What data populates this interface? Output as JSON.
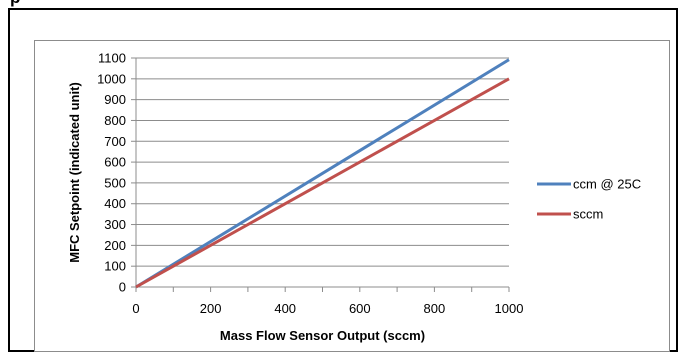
{
  "header": {
    "title_fragment": "p"
  },
  "chart_data": {
    "type": "line",
    "xlabel": "Mass Flow Sensor Output (sccm)",
    "ylabel": "MFC Setpoint (indicated unit)",
    "xlim": [
      0,
      1000
    ],
    "ylim": [
      0,
      1100
    ],
    "x_ticks": [
      0,
      200,
      400,
      600,
      800,
      1000
    ],
    "y_ticks": [
      0,
      100,
      200,
      300,
      400,
      500,
      600,
      700,
      800,
      900,
      1000,
      1100
    ],
    "grid": "horizontal",
    "legend_position": "right",
    "series": [
      {
        "name": "ccm @ 25C",
        "color": "#4f81bd",
        "x": [
          0,
          1000
        ],
        "y": [
          0,
          1092
        ]
      },
      {
        "name": "sccm",
        "color": "#c0504d",
        "x": [
          0,
          1000
        ],
        "y": [
          0,
          1000
        ]
      }
    ]
  }
}
